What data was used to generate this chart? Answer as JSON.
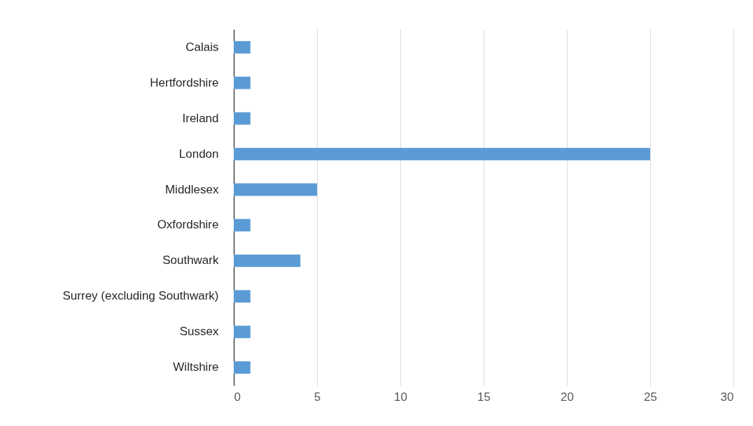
{
  "chart_data": {
    "type": "bar",
    "orientation": "horizontal",
    "categories": [
      "Calais",
      "Hertfordshire",
      "Ireland",
      "London",
      "Middlesex",
      "Oxfordshire",
      "Southwark",
      "Surrey (excluding Southwark)",
      "Sussex",
      "Wiltshire"
    ],
    "values": [
      1,
      1,
      1,
      25,
      5,
      1,
      4,
      1,
      1,
      1
    ],
    "color": "#5b9bd5",
    "xlim": [
      0,
      30
    ],
    "xticks": [
      0,
      5,
      10,
      15,
      20,
      25,
      30
    ],
    "grid": "x"
  }
}
